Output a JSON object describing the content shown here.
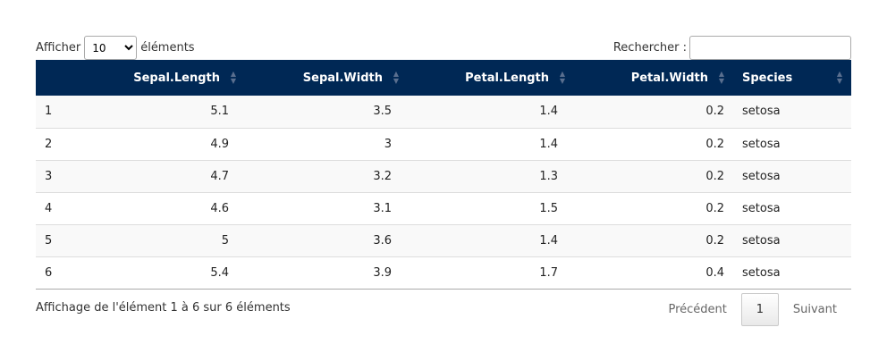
{
  "controls": {
    "length_prefix": "Afficher",
    "length_value": "10",
    "length_suffix": "éléments",
    "search_label": "Rechercher :",
    "search_value": ""
  },
  "table": {
    "columns": [
      "",
      "Sepal.Length",
      "Sepal.Width",
      "Petal.Length",
      "Petal.Width",
      "Species"
    ],
    "rows": [
      [
        "1",
        "5.1",
        "3.5",
        "1.4",
        "0.2",
        "setosa"
      ],
      [
        "2",
        "4.9",
        "3",
        "1.4",
        "0.2",
        "setosa"
      ],
      [
        "3",
        "4.7",
        "3.2",
        "1.3",
        "0.2",
        "setosa"
      ],
      [
        "4",
        "4.6",
        "3.1",
        "1.5",
        "0.2",
        "setosa"
      ],
      [
        "5",
        "5",
        "3.6",
        "1.4",
        "0.2",
        "setosa"
      ],
      [
        "6",
        "5.4",
        "3.9",
        "1.7",
        "0.4",
        "setosa"
      ]
    ]
  },
  "footer": {
    "info": "Affichage de l'élément 1 à 6 sur 6 éléments",
    "previous": "Précédent",
    "current_page": "1",
    "next": "Suivant"
  },
  "colors": {
    "header_bg": "#002855",
    "header_text": "#ffffff"
  }
}
